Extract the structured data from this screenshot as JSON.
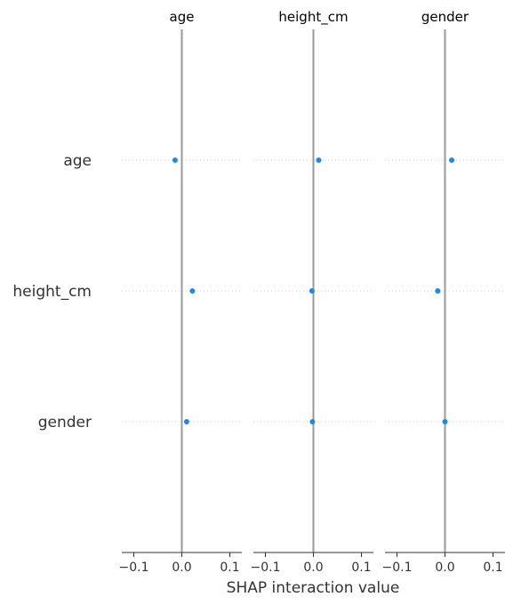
{
  "chart_data": {
    "type": "scatter",
    "xlabel": "SHAP interaction value",
    "xlim": [
      -0.125,
      0.125
    ],
    "xticks": [
      {
        "value": -0.1,
        "label": "−0.1"
      },
      {
        "value": 0.0,
        "label": "0.0"
      },
      {
        "value": 0.1,
        "label": "0.1"
      }
    ],
    "features": [
      "age",
      "height_cm",
      "gender"
    ],
    "columns": [
      "age",
      "height_cm",
      "gender"
    ],
    "points": [
      [
        -0.014,
        0.011,
        0.014
      ],
      [
        0.022,
        -0.003,
        -0.015
      ],
      [
        0.01,
        -0.002,
        0.0
      ]
    ],
    "point_color": "#1E88E5",
    "zero_line_color": "#999999",
    "grid": "dotted row guides"
  }
}
